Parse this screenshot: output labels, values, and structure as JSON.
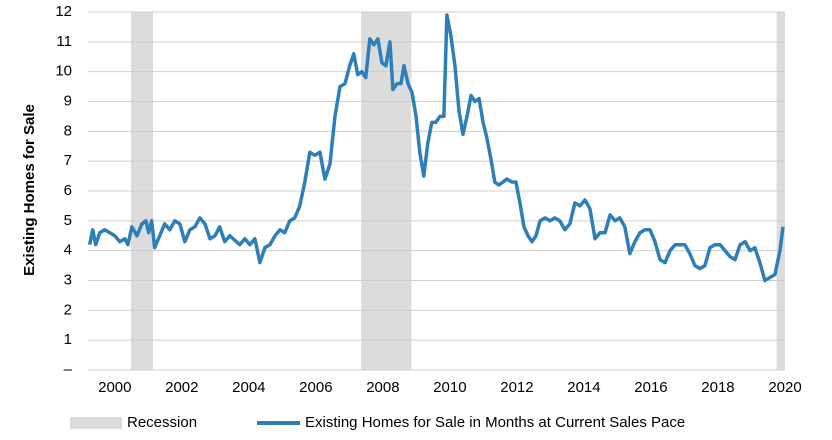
{
  "chart_data": {
    "type": "line",
    "y_label": "Existing Homes for Sale",
    "xlim": [
      1999.2,
      2020.0
    ],
    "xticks": [
      2000,
      2002,
      2004,
      2006,
      2008,
      2010,
      2012,
      2014,
      2016,
      2018,
      2020
    ],
    "ylim": [
      0,
      12
    ],
    "yticks": [
      {
        "value": 0,
        "label": "–"
      },
      1,
      2,
      3,
      4,
      5,
      6,
      7,
      8,
      9,
      10,
      11,
      12
    ],
    "grid": true,
    "legend": "bottom",
    "bands": {
      "name": "Recession",
      "color": "#dcdcdc",
      "ranges": [
        [
          2000.48,
          2001.14
        ],
        [
          2007.35,
          2008.85
        ],
        [
          2019.75,
          2020.0
        ]
      ]
    },
    "series": [
      {
        "name": "Existing Homes for Sale in Months at Current Sales Pace",
        "color": "#2e7fb8",
        "x": [
          1999.25,
          1999.34,
          1999.43,
          1999.55,
          1999.7,
          1999.85,
          2000.0,
          2000.15,
          2000.3,
          2000.39,
          2000.51,
          2000.66,
          2000.81,
          2000.93,
          2001.01,
          2001.1,
          2001.19,
          2001.34,
          2001.49,
          2001.64,
          2001.79,
          2001.94,
          2002.09,
          2002.24,
          2002.39,
          2002.54,
          2002.69,
          2002.84,
          2002.99,
          2003.13,
          2003.28,
          2003.43,
          2003.73,
          2003.88,
          2004.03,
          2004.18,
          2004.33,
          2004.48,
          2004.63,
          2004.78,
          2004.93,
          2005.07,
          2005.22,
          2005.37,
          2005.52,
          2005.67,
          2005.82,
          2005.97,
          2006.12,
          2006.27,
          2006.42,
          2006.57,
          2006.72,
          2006.87,
          2007.01,
          2007.13,
          2007.25,
          2007.37,
          2007.49,
          2007.61,
          2007.73,
          2007.85,
          2007.97,
          2008.09,
          2008.21,
          2008.3,
          2008.42,
          2008.54,
          2008.63,
          2008.75,
          2008.87,
          2008.99,
          2009.1,
          2009.22,
          2009.34,
          2009.46,
          2009.58,
          2009.7,
          2009.82,
          2009.91,
          2010.03,
          2010.15,
          2010.27,
          2010.39,
          2010.51,
          2010.63,
          2010.75,
          2010.87,
          2010.99,
          2011.1,
          2011.22,
          2011.34,
          2011.46,
          2011.58,
          2011.7,
          2011.85,
          2011.97,
          2012.09,
          2012.21,
          2012.33,
          2012.45,
          2012.57,
          2012.69,
          2012.84,
          2012.99,
          2013.13,
          2013.28,
          2013.43,
          2013.58,
          2013.73,
          2013.88,
          2014.03,
          2014.18,
          2014.33,
          2014.48,
          2014.63,
          2014.78,
          2014.93,
          2015.07,
          2015.22,
          2015.37,
          2015.52,
          2015.67,
          2015.82,
          2015.97,
          2016.12,
          2016.27,
          2016.42,
          2016.57,
          2016.72,
          2016.87,
          2017.01,
          2017.16,
          2017.31,
          2017.46,
          2017.61,
          2017.76,
          2017.91,
          2018.06,
          2018.21,
          2018.36,
          2018.51,
          2018.66,
          2018.81,
          2018.96,
          2019.1,
          2019.25,
          2019.4,
          2019.55,
          2019.7,
          2019.85,
          2019.94
        ],
        "values": [
          4.2,
          4.7,
          4.2,
          4.6,
          4.7,
          4.6,
          4.5,
          4.3,
          4.4,
          4.2,
          4.8,
          4.5,
          4.9,
          5.0,
          4.6,
          5.0,
          4.1,
          4.5,
          4.9,
          4.7,
          5.0,
          4.9,
          4.3,
          4.7,
          4.8,
          5.1,
          4.9,
          4.4,
          4.5,
          4.8,
          4.3,
          4.5,
          4.2,
          4.4,
          4.2,
          4.4,
          3.6,
          4.1,
          4.2,
          4.5,
          4.7,
          4.6,
          5.0,
          5.1,
          5.5,
          6.3,
          7.3,
          7.2,
          7.3,
          6.4,
          6.9,
          8.5,
          9.5,
          9.6,
          10.2,
          10.6,
          9.9,
          10.0,
          9.8,
          11.1,
          10.9,
          11.1,
          10.3,
          10.2,
          11.0,
          9.4,
          9.6,
          9.6,
          10.2,
          9.6,
          9.3,
          8.5,
          7.3,
          6.5,
          7.6,
          8.3,
          8.3,
          8.5,
          8.5,
          11.9,
          11.2,
          10.2,
          8.7,
          7.9,
          8.5,
          9.2,
          9.0,
          9.1,
          8.3,
          7.8,
          7.1,
          6.3,
          6.2,
          6.3,
          6.4,
          6.3,
          6.3,
          5.6,
          4.8,
          4.5,
          4.3,
          4.5,
          5.0,
          5.1,
          5.0,
          5.1,
          5.0,
          4.7,
          4.9,
          5.6,
          5.5,
          5.7,
          5.4,
          4.4,
          4.6,
          4.6,
          5.2,
          5.0,
          5.1,
          4.8,
          3.9,
          4.3,
          4.6,
          4.7,
          4.7,
          4.3,
          3.7,
          3.6,
          4.0,
          4.2,
          4.2,
          4.2,
          3.9,
          3.5,
          3.4,
          3.5,
          4.1,
          4.2,
          4.2,
          4.0,
          3.8,
          3.7,
          4.2,
          4.3,
          4.0,
          4.1,
          3.6,
          3.0,
          3.1,
          3.2,
          4.0,
          4.8
        ]
      }
    ]
  }
}
